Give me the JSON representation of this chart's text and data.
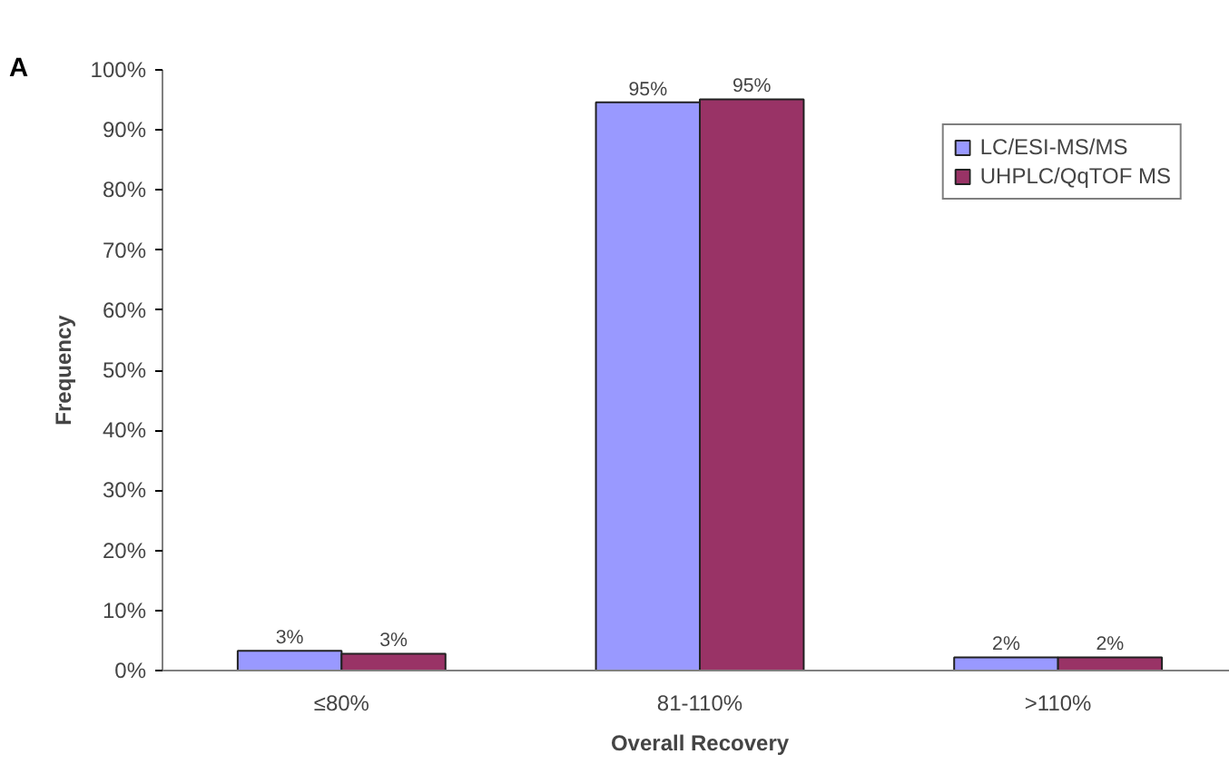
{
  "chart_data": {
    "type": "bar",
    "xlabel": "Overall Recovery",
    "ylabel": "Frequency",
    "annotations": [
      "A"
    ],
    "categories": [
      "≤80%",
      "81-110%",
      ">110%"
    ],
    "series": [
      {
        "name": "LC/ESI-MS/MS",
        "color": "#9999ff",
        "values": [
          3.3,
          94.6,
          2.2
        ],
        "value_labels": [
          "3%",
          "95%",
          "2%"
        ]
      },
      {
        "name": "UHPLC/QqTOF MS",
        "color": "#993366",
        "values": [
          2.8,
          95.1,
          2.2
        ],
        "value_labels": [
          "3%",
          "95%",
          "2%"
        ]
      }
    ],
    "ylim": [
      0,
      100
    ],
    "yticks": [
      {
        "value": 0,
        "label": "0%"
      },
      {
        "value": 10,
        "label": "10%"
      },
      {
        "value": 20,
        "label": "20%"
      },
      {
        "value": 30,
        "label": "30%"
      },
      {
        "value": 40,
        "label": "40%"
      },
      {
        "value": 50,
        "label": "50%"
      },
      {
        "value": 60,
        "label": "60%"
      },
      {
        "value": 70,
        "label": "70%"
      },
      {
        "value": 80,
        "label": "80%"
      },
      {
        "value": 90,
        "label": "90%"
      },
      {
        "value": 100,
        "label": "100%"
      }
    ],
    "grid": false,
    "legend": "top right"
  }
}
